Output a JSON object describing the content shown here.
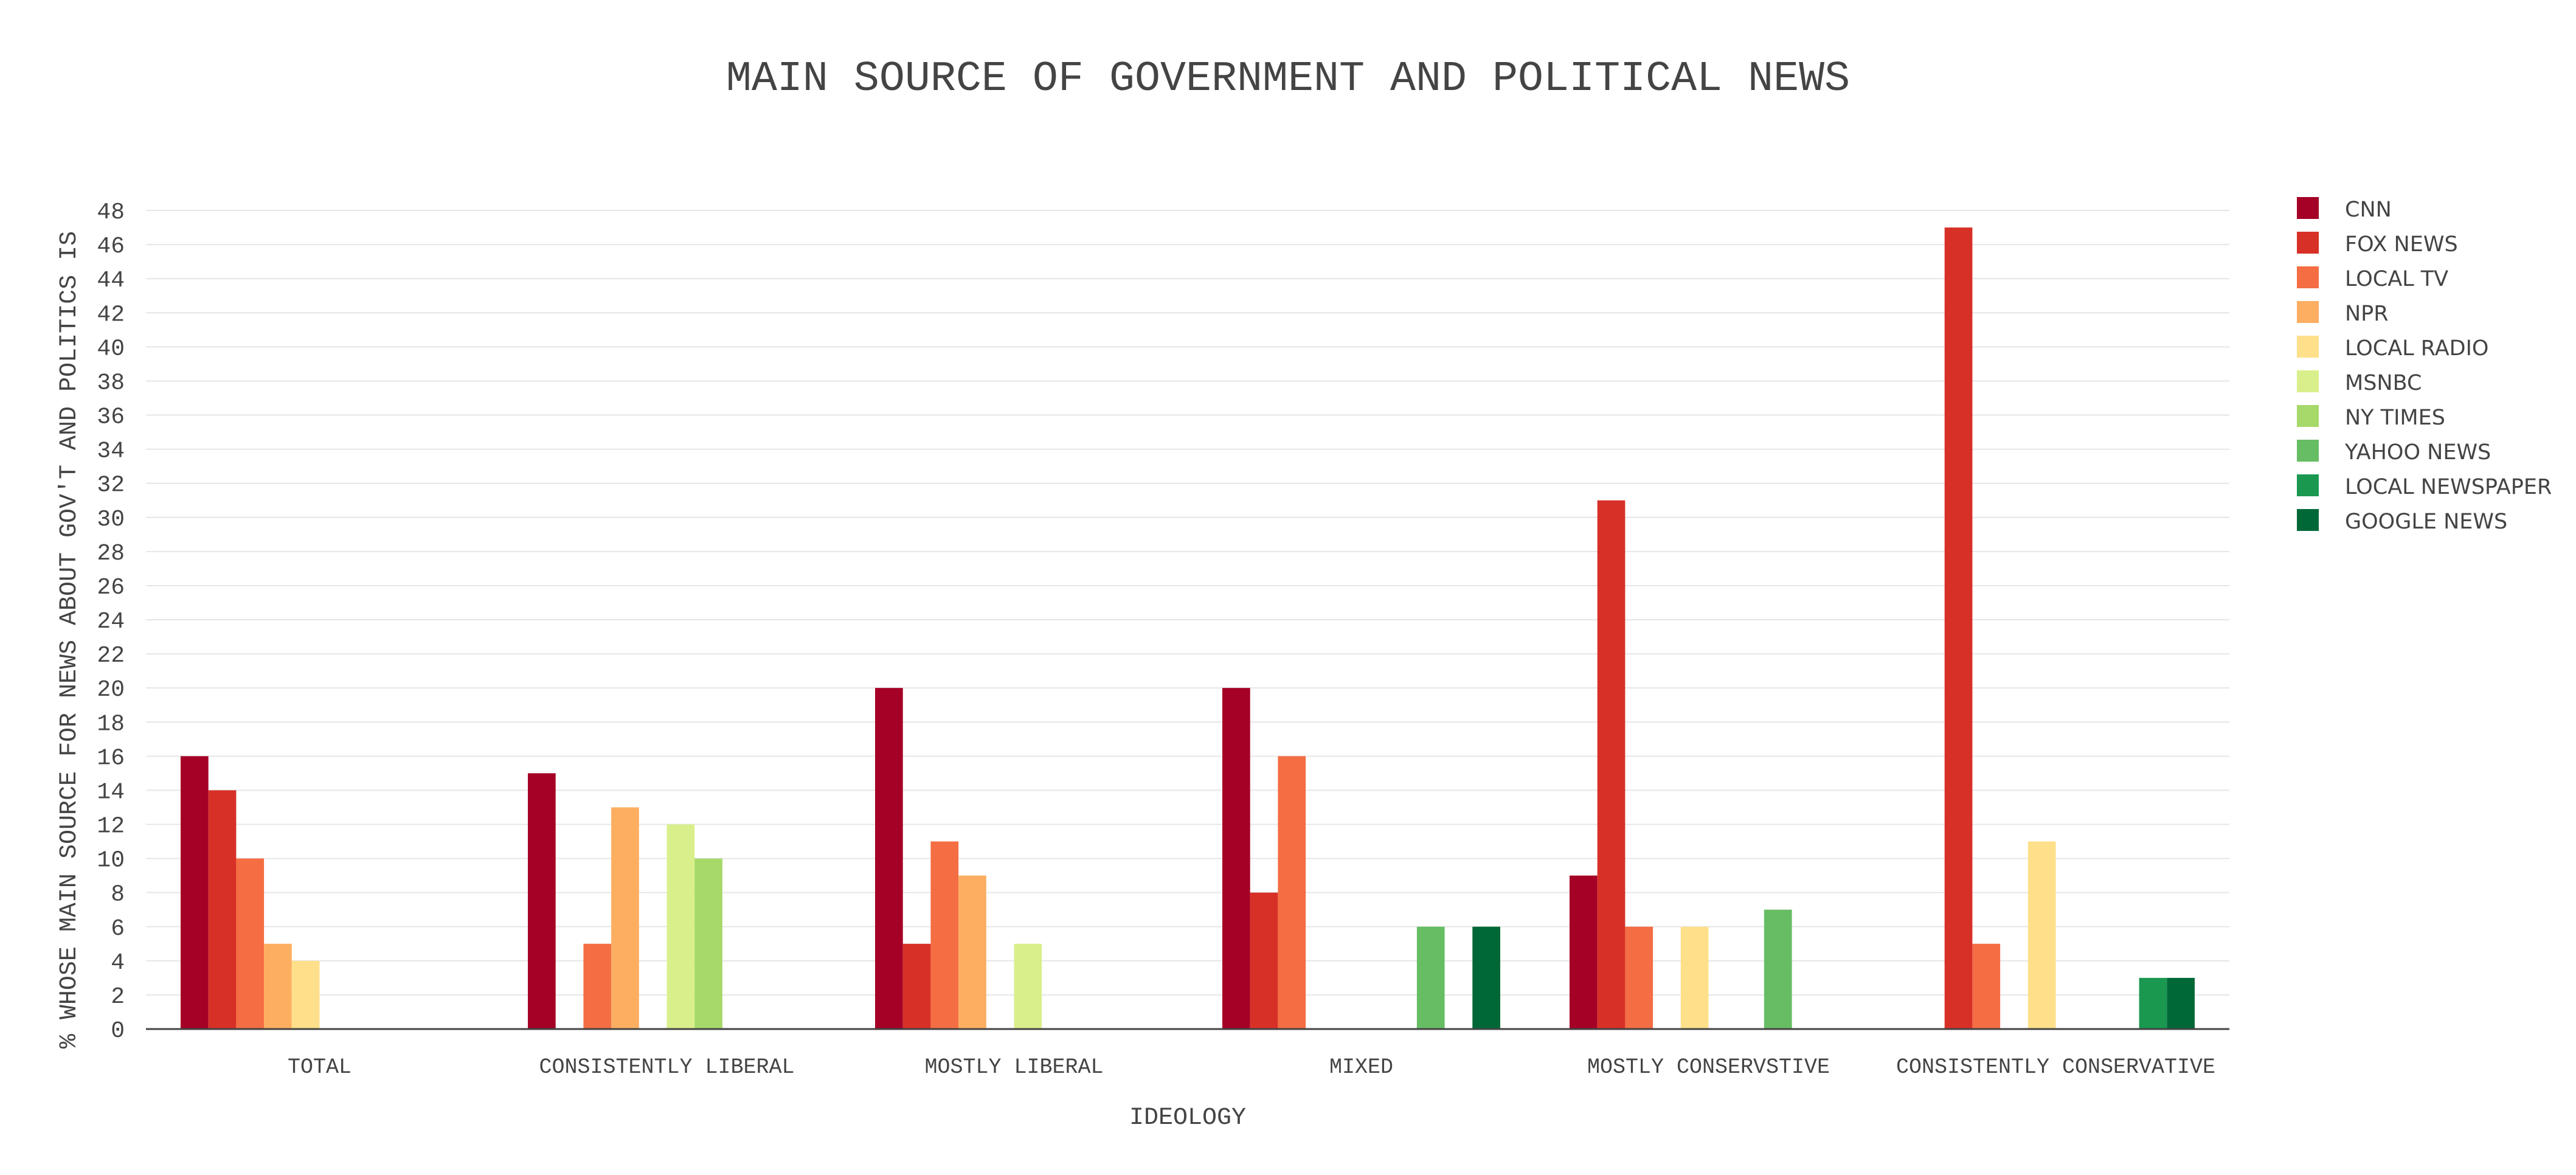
{
  "chart_data": {
    "type": "bar",
    "title": "MAIN SOURCE OF GOVERNMENT AND POLITICAL NEWS",
    "xlabel": "IDEOLOGY",
    "ylabel": "% WHOSE MAIN SOURCE FOR NEWS ABOUT GOV'T AND POLITICS IS",
    "ylim": [
      0,
      49
    ],
    "ytick_step": 2,
    "grid": true,
    "legend_position": "right",
    "categories": [
      "TOTAL",
      "CONSISTENTLY LIBERAL",
      "MOSTLY LIBERAL",
      "MIXED",
      "MOSTLY CONSERVSTIVE",
      "CONSISTENTLY CONSERVATIVE"
    ],
    "series": [
      {
        "name": "CNN",
        "color": "#a50026",
        "values": [
          16,
          15,
          20,
          20,
          9,
          null
        ]
      },
      {
        "name": "FOX NEWS",
        "color": "#d73027",
        "values": [
          14,
          null,
          5,
          8,
          31,
          47
        ]
      },
      {
        "name": "LOCAL TV",
        "color": "#f46d43",
        "values": [
          10,
          5,
          11,
          16,
          6,
          5
        ]
      },
      {
        "name": "NPR",
        "color": "#fdae61",
        "values": [
          5,
          13,
          9,
          null,
          null,
          null
        ]
      },
      {
        "name": "LOCAL RADIO",
        "color": "#fee08b",
        "values": [
          4,
          null,
          null,
          null,
          6,
          11
        ]
      },
      {
        "name": "MSNBC",
        "color": "#d9ef8b",
        "values": [
          null,
          12,
          5,
          null,
          null,
          null
        ]
      },
      {
        "name": "NY TIMES",
        "color": "#a6d96a",
        "values": [
          null,
          10,
          null,
          null,
          null,
          null
        ]
      },
      {
        "name": "YAHOO NEWS",
        "color": "#66bd63",
        "values": [
          null,
          null,
          null,
          6,
          7,
          null
        ]
      },
      {
        "name": "LOCAL NEWSPAPER",
        "color": "#1a9850",
        "values": [
          null,
          null,
          null,
          null,
          null,
          3
        ]
      },
      {
        "name": "GOOGLE NEWS",
        "color": "#006837",
        "values": [
          null,
          null,
          null,
          6,
          null,
          3
        ]
      }
    ]
  }
}
